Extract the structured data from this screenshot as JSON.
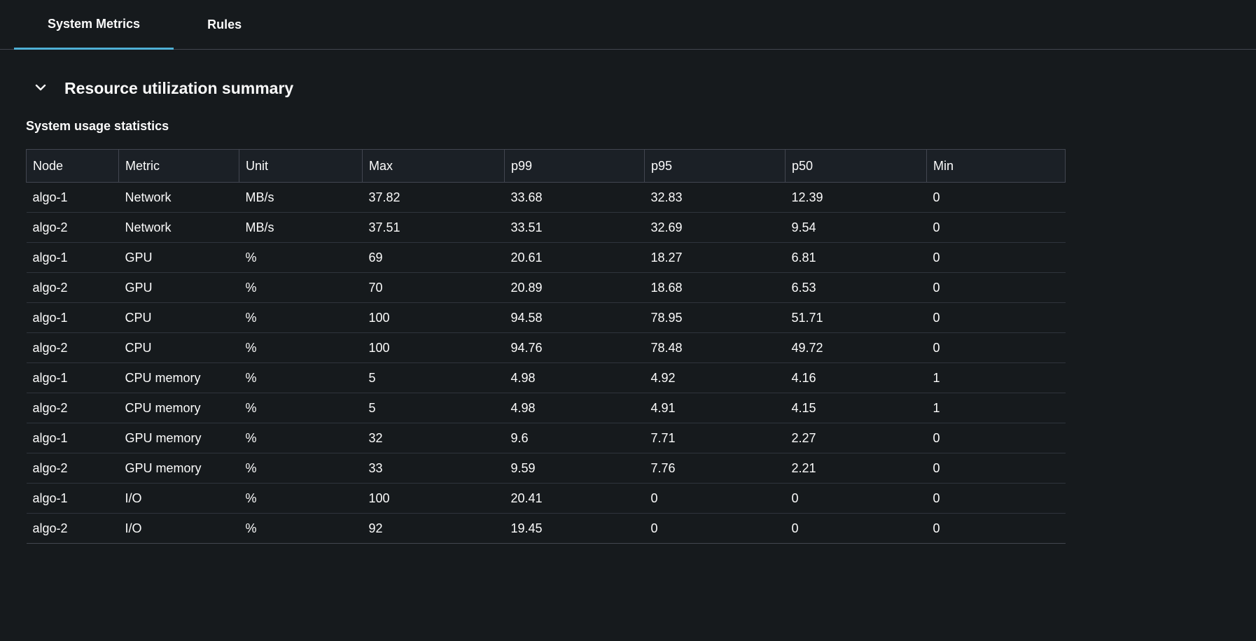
{
  "tabs": [
    {
      "label": "System Metrics",
      "active": true
    },
    {
      "label": "Rules",
      "active": false
    }
  ],
  "section": {
    "title": "Resource utilization summary",
    "subtitle": "System usage statistics",
    "expand_icon": "chevron-down-icon",
    "expanded": true
  },
  "table": {
    "columns": [
      "Node",
      "Metric",
      "Unit",
      "Max",
      "p99",
      "p95",
      "p50",
      "Min"
    ],
    "rows": [
      [
        "algo-1",
        "Network",
        "MB/s",
        "37.82",
        "33.68",
        "32.83",
        "12.39",
        "0"
      ],
      [
        "algo-2",
        "Network",
        "MB/s",
        "37.51",
        "33.51",
        "32.69",
        "9.54",
        "0"
      ],
      [
        "algo-1",
        "GPU",
        "%",
        "69",
        "20.61",
        "18.27",
        "6.81",
        "0"
      ],
      [
        "algo-2",
        "GPU",
        "%",
        "70",
        "20.89",
        "18.68",
        "6.53",
        "0"
      ],
      [
        "algo-1",
        "CPU",
        "%",
        "100",
        "94.58",
        "78.95",
        "51.71",
        "0"
      ],
      [
        "algo-2",
        "CPU",
        "%",
        "100",
        "94.76",
        "78.48",
        "49.72",
        "0"
      ],
      [
        "algo-1",
        "CPU memory",
        "%",
        "5",
        "4.98",
        "4.92",
        "4.16",
        "1"
      ],
      [
        "algo-2",
        "CPU memory",
        "%",
        "5",
        "4.98",
        "4.91",
        "4.15",
        "1"
      ],
      [
        "algo-1",
        "GPU memory",
        "%",
        "32",
        "9.6",
        "7.71",
        "2.27",
        "0"
      ],
      [
        "algo-2",
        "GPU memory",
        "%",
        "33",
        "9.59",
        "7.76",
        "2.21",
        "0"
      ],
      [
        "algo-1",
        "I/O",
        "%",
        "100",
        "20.41",
        "0",
        "0",
        "0"
      ],
      [
        "algo-2",
        "I/O",
        "%",
        "92",
        "19.45",
        "0",
        "0",
        "0"
      ]
    ]
  },
  "colors": {
    "accent_tab_underline": "#4fb0d5",
    "background": "#161a1d",
    "header_background": "#1b2026",
    "border": "#424650",
    "text": "#fbfbfb"
  }
}
